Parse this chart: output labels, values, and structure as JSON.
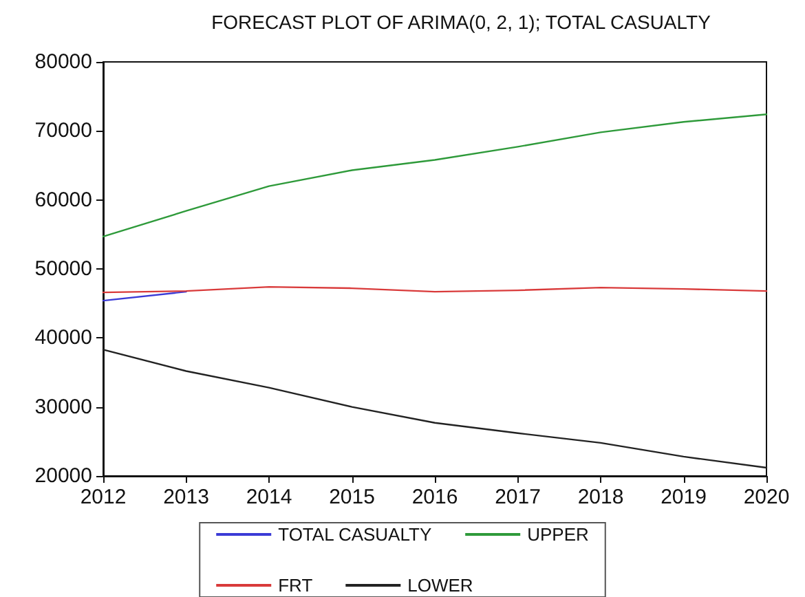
{
  "chart_data": {
    "type": "line",
    "title": "FORECAST PLOT OF ARIMA(0, 2, 1); TOTAL CASUALTY",
    "categories": [
      "2012",
      "2013",
      "2014",
      "2015",
      "2016",
      "2017",
      "2018",
      "2019",
      "2020"
    ],
    "series": [
      {
        "name": "TOTAL CASUALTY",
        "color": "#3b3bd6",
        "values": [
          45400,
          46700,
          null,
          null,
          null,
          null,
          null,
          null,
          null
        ]
      },
      {
        "name": "UPPER",
        "color": "#2e9a3a",
        "values": [
          54700,
          58400,
          62000,
          64300,
          65800,
          67700,
          69800,
          71300,
          72400
        ]
      },
      {
        "name": "FRT",
        "color": "#d93a3a",
        "values": [
          46600,
          46800,
          47400,
          47200,
          46700,
          46900,
          47300,
          47100,
          46800
        ]
      },
      {
        "name": "LOWER",
        "color": "#222222",
        "values": [
          38300,
          35200,
          32800,
          30000,
          27700,
          26200,
          24800,
          22800,
          21200
        ]
      }
    ],
    "ylim": [
      20000,
      80000
    ],
    "yticks": [
      20000,
      30000,
      40000,
      50000,
      60000,
      70000,
      80000
    ],
    "grid": false,
    "legend": "bottom",
    "marker": "none",
    "line_style": "solid"
  }
}
